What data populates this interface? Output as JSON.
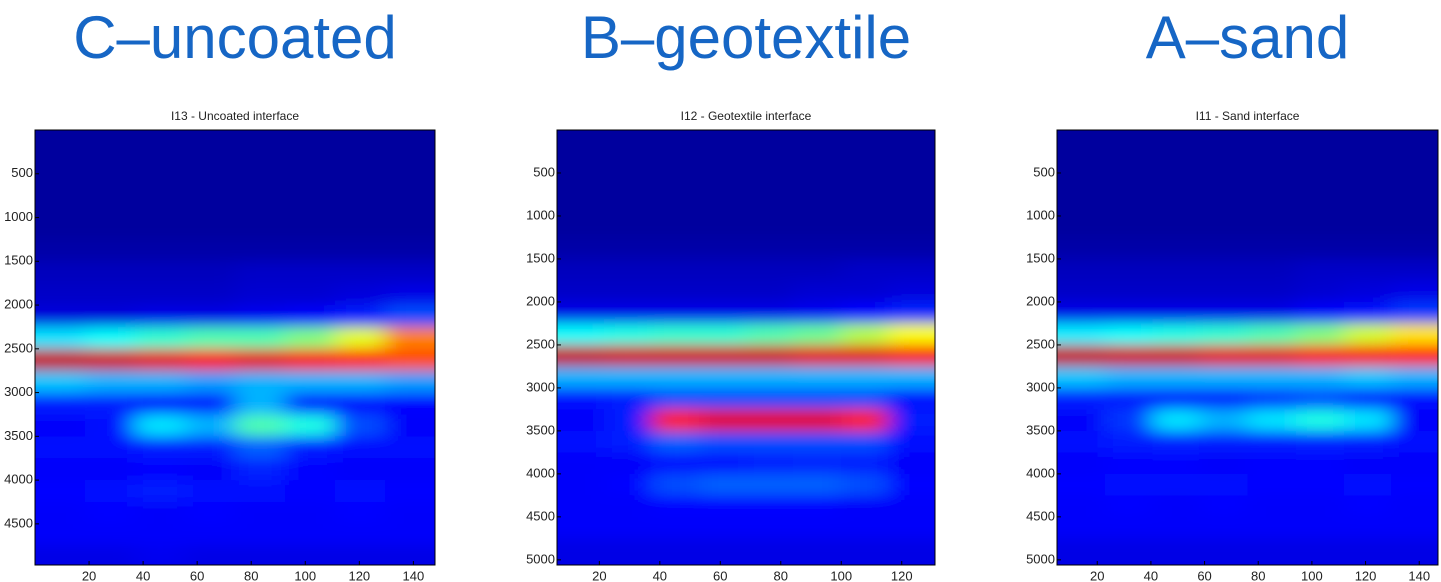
{
  "chart_data": [
    {
      "type": "heatmap",
      "annotation": "C–uncoated",
      "title": "I13 - Uncoated interface",
      "xlim": [
        0,
        148
      ],
      "ylim": [
        0,
        4970
      ],
      "xticks": [
        20,
        40,
        60,
        80,
        100,
        120,
        140
      ],
      "yticks": [
        500,
        1000,
        1500,
        2000,
        2500,
        3000,
        3500,
        4000,
        4500
      ],
      "x": [
        9,
        28,
        46,
        65,
        83,
        102,
        120,
        139
      ],
      "y": [
        125,
        375,
        625,
        875,
        1125,
        1375,
        1625,
        1875,
        2125,
        2375,
        2625,
        2875,
        3125,
        3375,
        3625,
        3875,
        4125,
        4375,
        4625,
        4875
      ],
      "z": [
        [
          0.03,
          0.03,
          0.03,
          0.03,
          0.03,
          0.03,
          0.03,
          0.03
        ],
        [
          0.03,
          0.03,
          0.03,
          0.03,
          0.03,
          0.03,
          0.03,
          0.03
        ],
        [
          0.03,
          0.03,
          0.03,
          0.03,
          0.03,
          0.03,
          0.03,
          0.03
        ],
        [
          0.03,
          0.03,
          0.03,
          0.03,
          0.03,
          0.03,
          0.03,
          0.03
        ],
        [
          0.03,
          0.03,
          0.03,
          0.03,
          0.03,
          0.03,
          0.03,
          0.03
        ],
        [
          0.04,
          0.04,
          0.04,
          0.04,
          0.04,
          0.04,
          0.04,
          0.04
        ],
        [
          0.06,
          0.06,
          0.06,
          0.06,
          0.07,
          0.07,
          0.07,
          0.07
        ],
        [
          0.07,
          0.07,
          0.07,
          0.07,
          0.08,
          0.08,
          0.09,
          0.1
        ],
        [
          0.09,
          0.09,
          0.1,
          0.1,
          0.11,
          0.12,
          0.15,
          0.2
        ],
        [
          0.35,
          0.38,
          0.42,
          0.45,
          0.45,
          0.5,
          0.6,
          0.75
        ],
        [
          0.93,
          0.92,
          0.9,
          0.88,
          0.9,
          0.88,
          0.85,
          0.8
        ],
        [
          0.32,
          0.3,
          0.3,
          0.28,
          0.3,
          0.3,
          0.3,
          0.28
        ],
        [
          0.15,
          0.15,
          0.14,
          0.14,
          0.3,
          0.15,
          0.14,
          0.13
        ],
        [
          0.12,
          0.14,
          0.35,
          0.3,
          0.45,
          0.4,
          0.2,
          0.12
        ],
        [
          0.14,
          0.14,
          0.15,
          0.15,
          0.22,
          0.15,
          0.14,
          0.14
        ],
        [
          0.12,
          0.12,
          0.13,
          0.12,
          0.16,
          0.13,
          0.12,
          0.12
        ],
        [
          0.13,
          0.14,
          0.15,
          0.14,
          0.14,
          0.13,
          0.14,
          0.13
        ],
        [
          0.12,
          0.13,
          0.12,
          0.13,
          0.12,
          0.12,
          0.13,
          0.12
        ],
        [
          0.12,
          0.12,
          0.12,
          0.12,
          0.12,
          0.12,
          0.12,
          0.12
        ],
        [
          0.1,
          0.1,
          0.11,
          0.1,
          0.1,
          0.1,
          0.1,
          0.1
        ]
      ]
    },
    {
      "type": "heatmap",
      "annotation": "B–geotextile",
      "title": "I12 - Geotextile interface",
      "xlim": [
        6,
        131
      ],
      "ylim": [
        0,
        5060
      ],
      "xticks": [
        20,
        40,
        60,
        80,
        100,
        120
      ],
      "yticks": [
        500,
        1000,
        1500,
        2000,
        2500,
        3000,
        3500,
        4000,
        4500,
        5000
      ],
      "x": [
        14,
        29,
        45,
        61,
        76,
        92,
        108,
        123
      ],
      "y": [
        125,
        375,
        625,
        875,
        1125,
        1375,
        1625,
        1875,
        2125,
        2375,
        2625,
        2875,
        3125,
        3375,
        3625,
        3875,
        4125,
        4375,
        4625,
        4875
      ],
      "z": [
        [
          0.03,
          0.03,
          0.03,
          0.03,
          0.03,
          0.03,
          0.03,
          0.03
        ],
        [
          0.03,
          0.03,
          0.03,
          0.03,
          0.03,
          0.03,
          0.03,
          0.03
        ],
        [
          0.03,
          0.03,
          0.03,
          0.03,
          0.03,
          0.03,
          0.03,
          0.03
        ],
        [
          0.03,
          0.03,
          0.03,
          0.03,
          0.03,
          0.03,
          0.03,
          0.03
        ],
        [
          0.03,
          0.03,
          0.03,
          0.03,
          0.03,
          0.03,
          0.03,
          0.03
        ],
        [
          0.04,
          0.04,
          0.04,
          0.04,
          0.04,
          0.04,
          0.04,
          0.04
        ],
        [
          0.06,
          0.06,
          0.06,
          0.06,
          0.06,
          0.06,
          0.07,
          0.07
        ],
        [
          0.07,
          0.07,
          0.07,
          0.07,
          0.07,
          0.08,
          0.08,
          0.09
        ],
        [
          0.1,
          0.1,
          0.1,
          0.1,
          0.1,
          0.11,
          0.13,
          0.16
        ],
        [
          0.38,
          0.4,
          0.42,
          0.42,
          0.45,
          0.48,
          0.55,
          0.62
        ],
        [
          0.93,
          0.92,
          0.92,
          0.92,
          0.92,
          0.9,
          0.9,
          0.88
        ],
        [
          0.3,
          0.3,
          0.3,
          0.3,
          0.3,
          0.3,
          0.3,
          0.3
        ],
        [
          0.14,
          0.15,
          0.2,
          0.2,
          0.2,
          0.2,
          0.2,
          0.14
        ],
        [
          0.12,
          0.15,
          0.85,
          0.9,
          0.9,
          0.9,
          0.85,
          0.15
        ],
        [
          0.14,
          0.15,
          0.22,
          0.2,
          0.2,
          0.2,
          0.2,
          0.14
        ],
        [
          0.12,
          0.12,
          0.14,
          0.14,
          0.15,
          0.16,
          0.15,
          0.12
        ],
        [
          0.12,
          0.13,
          0.2,
          0.22,
          0.22,
          0.22,
          0.2,
          0.13
        ],
        [
          0.12,
          0.12,
          0.13,
          0.13,
          0.13,
          0.13,
          0.12,
          0.12
        ],
        [
          0.12,
          0.12,
          0.12,
          0.12,
          0.12,
          0.12,
          0.12,
          0.12
        ],
        [
          0.1,
          0.1,
          0.1,
          0.1,
          0.1,
          0.1,
          0.1,
          0.1
        ]
      ]
    },
    {
      "type": "heatmap",
      "annotation": "A–sand",
      "title": "I11 - Sand interface",
      "xlim": [
        5,
        147
      ],
      "ylim": [
        0,
        5060
      ],
      "xticks": [
        20,
        40,
        60,
        80,
        100,
        120,
        140
      ],
      "yticks": [
        500,
        1000,
        1500,
        2000,
        2500,
        3000,
        3500,
        4000,
        4500,
        5000
      ],
      "x": [
        14,
        32,
        49,
        67,
        85,
        103,
        121,
        138
      ],
      "y": [
        125,
        375,
        625,
        875,
        1125,
        1375,
        1625,
        1875,
        2125,
        2375,
        2625,
        2875,
        3125,
        3375,
        3625,
        3875,
        4125,
        4375,
        4625,
        4875
      ],
      "z": [
        [
          0.03,
          0.03,
          0.03,
          0.03,
          0.03,
          0.03,
          0.03,
          0.03
        ],
        [
          0.03,
          0.03,
          0.03,
          0.03,
          0.03,
          0.03,
          0.03,
          0.03
        ],
        [
          0.03,
          0.03,
          0.03,
          0.03,
          0.03,
          0.03,
          0.03,
          0.03
        ],
        [
          0.03,
          0.03,
          0.03,
          0.03,
          0.03,
          0.03,
          0.03,
          0.03
        ],
        [
          0.03,
          0.03,
          0.03,
          0.03,
          0.03,
          0.03,
          0.03,
          0.03
        ],
        [
          0.04,
          0.04,
          0.04,
          0.04,
          0.04,
          0.04,
          0.04,
          0.04
        ],
        [
          0.06,
          0.06,
          0.06,
          0.06,
          0.06,
          0.07,
          0.07,
          0.07
        ],
        [
          0.07,
          0.07,
          0.07,
          0.07,
          0.07,
          0.08,
          0.09,
          0.1
        ],
        [
          0.1,
          0.1,
          0.1,
          0.1,
          0.1,
          0.12,
          0.14,
          0.18
        ],
        [
          0.36,
          0.38,
          0.4,
          0.42,
          0.45,
          0.5,
          0.58,
          0.65
        ],
        [
          0.93,
          0.92,
          0.92,
          0.9,
          0.9,
          0.88,
          0.88,
          0.86
        ],
        [
          0.32,
          0.3,
          0.3,
          0.3,
          0.3,
          0.3,
          0.32,
          0.3
        ],
        [
          0.15,
          0.15,
          0.15,
          0.15,
          0.18,
          0.2,
          0.16,
          0.14
        ],
        [
          0.12,
          0.18,
          0.35,
          0.3,
          0.35,
          0.4,
          0.35,
          0.12
        ],
        [
          0.14,
          0.15,
          0.16,
          0.15,
          0.15,
          0.16,
          0.15,
          0.14
        ],
        [
          0.12,
          0.13,
          0.13,
          0.12,
          0.13,
          0.13,
          0.12,
          0.12
        ],
        [
          0.13,
          0.14,
          0.14,
          0.14,
          0.13,
          0.13,
          0.14,
          0.13
        ],
        [
          0.12,
          0.13,
          0.12,
          0.13,
          0.12,
          0.12,
          0.13,
          0.12
        ],
        [
          0.12,
          0.12,
          0.12,
          0.12,
          0.12,
          0.12,
          0.12,
          0.12
        ],
        [
          0.1,
          0.1,
          0.1,
          0.1,
          0.1,
          0.1,
          0.1,
          0.1
        ]
      ]
    }
  ]
}
